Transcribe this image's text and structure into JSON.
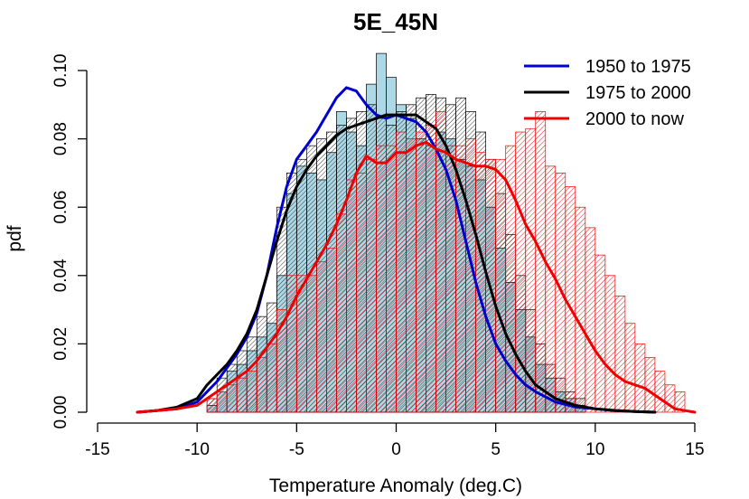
{
  "chart_data": {
    "type": "histogram",
    "title": "5E_45N",
    "xlabel": "Temperature Anomaly (deg.C)",
    "ylabel": "pdf",
    "xlim": [
      -15,
      15
    ],
    "ylim": [
      0,
      0.1
    ],
    "xticks": [
      -15,
      -10,
      -5,
      0,
      5,
      10,
      15
    ],
    "xtick_labels": [
      "-15",
      "-10",
      "-5",
      "0",
      "5",
      "10",
      "15"
    ],
    "yticks": [
      0,
      0.02,
      0.04,
      0.06,
      0.08,
      0.1
    ],
    "ytick_labels": [
      "0.00",
      "0.02",
      "0.04",
      "0.06",
      "0.08",
      "0.10"
    ],
    "legend_position": "top-right",
    "bin_width": 0.5,
    "hist_start": -9.5,
    "series": [
      {
        "name": "1950 to 1975",
        "color": "#0000cc",
        "fill": "#add8e6",
        "hist": [
          0.002,
          0.006,
          0.012,
          0.014,
          0.018,
          0.022,
          0.026,
          0.04,
          0.064,
          0.072,
          0.07,
          0.068,
          0.076,
          0.088,
          0.082,
          0.078,
          0.096,
          0.105,
          0.098,
          0.09,
          0.086,
          0.08,
          0.078,
          0.082,
          0.08,
          0.074,
          0.072,
          0.068,
          0.06,
          0.048,
          0.038,
          0.03,
          0.022,
          0.014,
          0.01,
          0.006,
          0.004,
          0.002
        ],
        "density": {
          "x": [
            -13,
            -12,
            -11,
            -10,
            -9.5,
            -9,
            -8.5,
            -8,
            -7.5,
            -7,
            -6.5,
            -6,
            -5.5,
            -5,
            -4.5,
            -4,
            -3.5,
            -3,
            -2.5,
            -2,
            -1.5,
            -1,
            -0.5,
            0,
            0.5,
            1,
            1.5,
            2,
            2.5,
            3,
            3.5,
            4,
            4.5,
            5,
            5.5,
            6,
            6.5,
            7,
            8,
            9,
            10,
            11,
            12,
            13
          ],
          "y": [
            0,
            0.0005,
            0.001,
            0.003,
            0.006,
            0.009,
            0.013,
            0.017,
            0.022,
            0.029,
            0.04,
            0.054,
            0.066,
            0.074,
            0.078,
            0.082,
            0.087,
            0.092,
            0.095,
            0.094,
            0.09,
            0.087,
            0.086,
            0.087,
            0.086,
            0.085,
            0.082,
            0.077,
            0.071,
            0.062,
            0.05,
            0.038,
            0.028,
            0.02,
            0.015,
            0.011,
            0.008,
            0.006,
            0.003,
            0.0015,
            0.001,
            0.0005,
            0.0002,
            0
          ]
        }
      },
      {
        "name": "1975 to 2000",
        "color": "#000000",
        "fill": "none",
        "hist": [
          0.004,
          0.01,
          0.014,
          0.018,
          0.022,
          0.028,
          0.032,
          0.06,
          0.07,
          0.074,
          0.078,
          0.08,
          0.082,
          0.084,
          0.086,
          0.088,
          0.09,
          0.086,
          0.084,
          0.088,
          0.09,
          0.092,
          0.093,
          0.092,
          0.09,
          0.092,
          0.088,
          0.082,
          0.074,
          0.064,
          0.052,
          0.04,
          0.03,
          0.02,
          0.014,
          0.01,
          0.006,
          0.004
        ],
        "density": {
          "x": [
            -13,
            -12,
            -11,
            -10,
            -9.5,
            -9,
            -8.5,
            -8,
            -7.5,
            -7,
            -6.5,
            -6,
            -5.5,
            -5,
            -4.5,
            -4,
            -3.5,
            -3,
            -2.5,
            -2,
            -1.5,
            -1,
            -0.5,
            0,
            0.5,
            1,
            1.5,
            2,
            2.5,
            3,
            3.5,
            4,
            4.5,
            5,
            5.5,
            6,
            6.5,
            7,
            8,
            9,
            10,
            11,
            12,
            13
          ],
          "y": [
            0,
            0.0005,
            0.0015,
            0.004,
            0.008,
            0.011,
            0.014,
            0.018,
            0.023,
            0.03,
            0.04,
            0.05,
            0.059,
            0.066,
            0.071,
            0.075,
            0.078,
            0.081,
            0.083,
            0.084,
            0.085,
            0.086,
            0.087,
            0.087,
            0.087,
            0.087,
            0.085,
            0.083,
            0.078,
            0.071,
            0.062,
            0.052,
            0.041,
            0.031,
            0.023,
            0.017,
            0.012,
            0.008,
            0.004,
            0.002,
            0.001,
            0.0005,
            0.0002,
            0
          ]
        }
      },
      {
        "name": "2000 to now",
        "color": "#ee0000",
        "fill": "none",
        "hist": [
          0.004,
          0.006,
          0.008,
          0.01,
          0.012,
          0.016,
          0.02,
          0.03,
          0.04,
          0.04,
          0.04,
          0.044,
          0.048,
          0.058,
          0.068,
          0.07,
          0.074,
          0.078,
          0.078,
          0.082,
          0.08,
          0.082,
          0.084,
          0.088,
          0.078,
          0.078,
          0.08,
          0.076,
          0.074,
          0.074,
          0.078,
          0.082,
          0.083,
          0.088,
          0.072,
          0.07,
          0.066,
          0.06,
          0.054,
          0.046,
          0.04,
          0.034,
          0.026,
          0.02,
          0.016,
          0.012,
          0.008,
          0.006
        ],
        "density": {
          "x": [
            -13,
            -12,
            -11,
            -10,
            -9.5,
            -9,
            -8.5,
            -8,
            -7.5,
            -7,
            -6.5,
            -6,
            -5.5,
            -5,
            -4.5,
            -4,
            -3.5,
            -3,
            -2.5,
            -2,
            -1.5,
            -1,
            -0.5,
            0,
            0.5,
            1,
            1.5,
            2,
            2.5,
            3,
            3.5,
            4,
            4.5,
            5,
            5.5,
            6,
            6.5,
            7,
            7.5,
            8,
            8.5,
            9,
            9.5,
            10,
            10.5,
            11,
            11.5,
            12,
            12.5,
            13,
            14,
            15
          ],
          "y": [
            0,
            0.0005,
            0.001,
            0.002,
            0.004,
            0.006,
            0.008,
            0.01,
            0.012,
            0.015,
            0.019,
            0.023,
            0.028,
            0.034,
            0.039,
            0.044,
            0.049,
            0.055,
            0.062,
            0.07,
            0.075,
            0.073,
            0.073,
            0.076,
            0.076,
            0.078,
            0.079,
            0.077,
            0.076,
            0.074,
            0.073,
            0.072,
            0.072,
            0.071,
            0.068,
            0.062,
            0.055,
            0.05,
            0.044,
            0.039,
            0.033,
            0.028,
            0.023,
            0.018,
            0.014,
            0.011,
            0.009,
            0.008,
            0.007,
            0.005,
            0.001,
            0
          ]
        }
      }
    ]
  }
}
